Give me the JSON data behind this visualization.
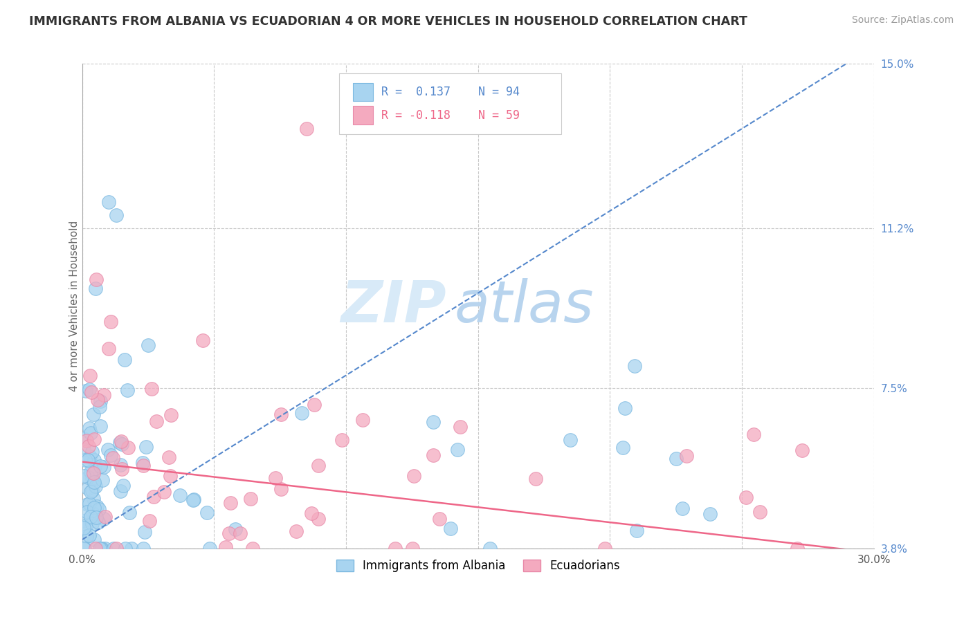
{
  "title": "IMMIGRANTS FROM ALBANIA VS ECUADORIAN 4 OR MORE VEHICLES IN HOUSEHOLD CORRELATION CHART",
  "source": "Source: ZipAtlas.com",
  "ylabel": "4 or more Vehicles in Household",
  "xlim": [
    0.0,
    30.0
  ],
  "ylim": [
    3.8,
    15.0
  ],
  "xticks": [
    0.0,
    5.0,
    10.0,
    15.0,
    20.0,
    25.0,
    30.0
  ],
  "yticks": [
    3.8,
    7.5,
    11.2,
    15.0
  ],
  "xticklabels": [
    "0.0%",
    "",
    "",
    "",
    "",
    "",
    "30.0%"
  ],
  "yticklabels_right": [
    "3.8%",
    "7.5%",
    "11.2%",
    "15.0%"
  ],
  "legend1_R": "0.137",
  "legend1_N": "94",
  "legend2_R": "-0.118",
  "legend2_N": "59",
  "blue_color": "#A8D4F0",
  "blue_edge_color": "#7BB8E0",
  "pink_color": "#F4AABF",
  "pink_edge_color": "#E888A8",
  "blue_line_color": "#5588CC",
  "pink_line_color": "#EE6688",
  "grid_color": "#C8C8C8",
  "axis_color": "#AAAAAA",
  "title_color": "#333333",
  "source_color": "#999999",
  "ytick_color": "#5588CC",
  "watermark_color": "#D8EAF8",
  "blue_slope": 0.38,
  "blue_intercept": 4.0,
  "pink_slope": -0.07,
  "pink_intercept": 5.8
}
